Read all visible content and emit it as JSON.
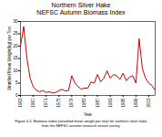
{
  "chart_data": {
    "type": "line",
    "title": "Northern Silver Hake",
    "subtitle": "NEFSC Autumn Biomass Index",
    "xlabel": "Year",
    "ylabel": "Stratified Mean Weight(kg) per Tow",
    "annotations": [
      "Figure 4.4.  Biomass index (stratified mean weight per tow) for northern silver hake",
      "from the NEFSC autumn research vessel survey."
    ],
    "color": "#cc0000",
    "x": [
      1963,
      1964,
      1965,
      1966,
      1967,
      1968,
      1969,
      1970,
      1971,
      1972,
      1973,
      1974,
      1975,
      1976,
      1977,
      1978,
      1979,
      1980,
      1981,
      1982,
      1983,
      1984,
      1985,
      1986,
      1987,
      1988,
      1989,
      1990,
      1991,
      1992,
      1993,
      1994,
      1995,
      1996,
      1997,
      1998,
      1999,
      2000,
      2001,
      2002,
      2003,
      2004,
      2005
    ],
    "values": [
      20.0,
      28.0,
      15.0,
      7.0,
      3.5,
      2.0,
      1.5,
      2.0,
      1.2,
      1.5,
      1.0,
      1.2,
      2.0,
      2.5,
      1.8,
      2.0,
      8.0,
      5.0,
      3.5,
      2.5,
      3.0,
      3.0,
      5.5,
      5.0,
      8.5,
      5.5,
      7.0,
      10.0,
      7.0,
      8.5,
      8.0,
      6.5,
      9.0,
      6.0,
      7.5,
      8.0,
      5.0,
      23.0,
      11.0,
      7.0,
      5.0,
      4.0,
      2.0
    ],
    "xlim": [
      1963,
      2005
    ],
    "xticks": [
      1963,
      1967,
      1971,
      1975,
      1979,
      1983,
      1987,
      1991,
      1995,
      1999,
      2003
    ],
    "ylim": [
      0,
      30
    ],
    "yticks": [
      0,
      5,
      10,
      15,
      20,
      25,
      30
    ],
    "grid": false
  }
}
